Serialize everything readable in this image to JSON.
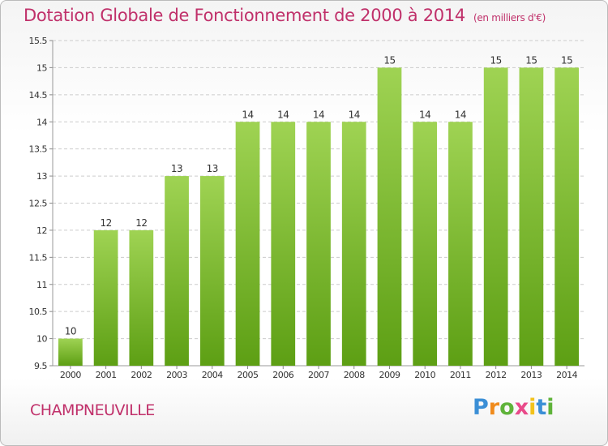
{
  "title": "Dotation Globale de Fonctionnement de 2000 à 2014",
  "unit_note": "(en milliers d'€)",
  "commune": "CHAMPNEUVILLE",
  "logo": {
    "letters": [
      "P",
      "r",
      "o",
      "x",
      "i",
      "t",
      "i"
    ],
    "colors": [
      "#3b8fd6",
      "#f08b1c",
      "#5fb33a",
      "#e94a8a",
      "#f3c21b",
      "#3b8fd6",
      "#5fb33a"
    ]
  },
  "colors": {
    "title": "#c0306a",
    "bar_top": "#9fd353",
    "bar_bottom": "#5d9f14",
    "grid": "#cccccc",
    "axis_text": "#333333"
  },
  "chart_data": {
    "type": "bar",
    "title": "Dotation Globale de Fonctionnement de 2000 à 2014",
    "xlabel": "",
    "ylabel": "",
    "ylim": [
      9.5,
      15.5
    ],
    "yticks": [
      "9.5",
      "10",
      "10.5",
      "11",
      "11.5",
      "12",
      "12.5",
      "13",
      "13.5",
      "14",
      "14.5",
      "15",
      "15.5"
    ],
    "grid": true,
    "categories": [
      "2000",
      "2001",
      "2002",
      "2003",
      "2004",
      "2005",
      "2006",
      "2007",
      "2008",
      "2009",
      "2010",
      "2011",
      "2012",
      "2013",
      "2014"
    ],
    "values": [
      10,
      12,
      12,
      13,
      13,
      14,
      14,
      14,
      14,
      15,
      14,
      14,
      15,
      15,
      15
    ],
    "labels": [
      "10",
      "12",
      "12",
      "13",
      "13",
      "14",
      "14",
      "14",
      "14",
      "15",
      "14",
      "14",
      "15",
      "15",
      "15"
    ]
  }
}
